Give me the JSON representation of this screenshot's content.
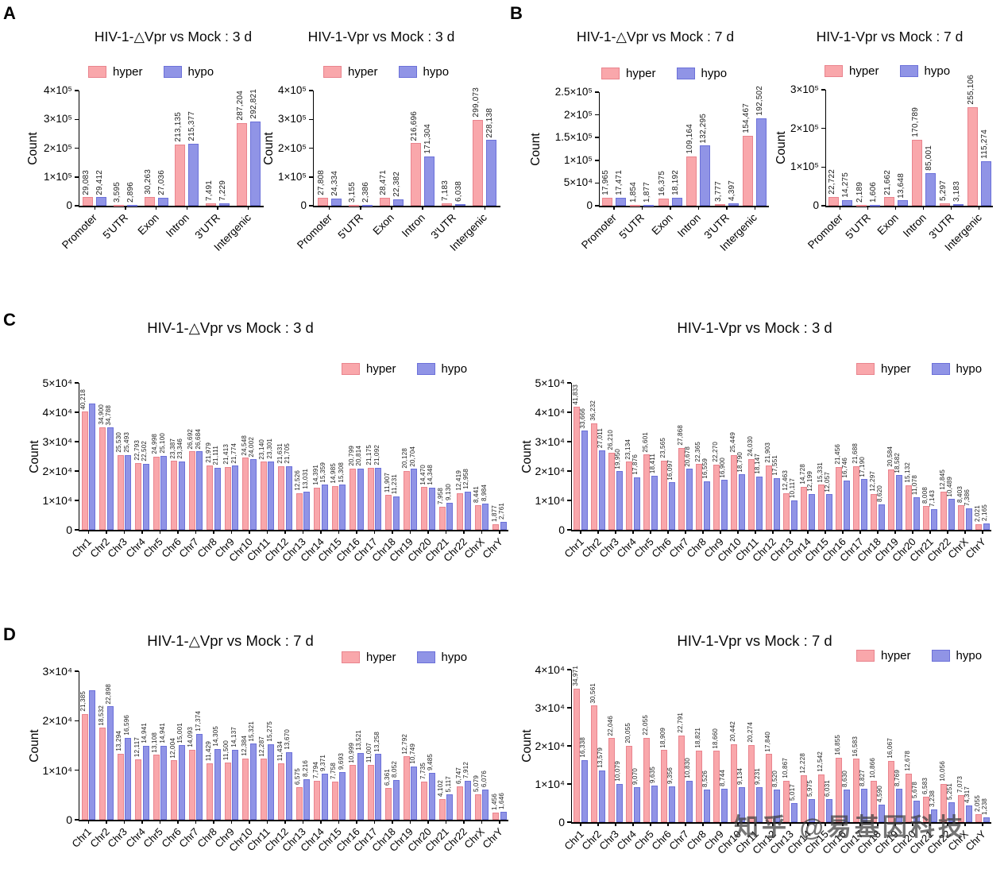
{
  "watermark": "知乎 @易基因科技",
  "legend": {
    "hyper": "hyper",
    "hypo": "hypo"
  },
  "colors": {
    "hyper": "#F9A7AB",
    "hyper_border": "#E9848E",
    "hypo": "#9094E6",
    "hypo_border": "#6C71D9"
  },
  "panels": [
    {
      "letter": "A"
    },
    {
      "letter": "B"
    },
    {
      "letter": "C"
    },
    {
      "letter": "D"
    }
  ],
  "chart_data": [
    {
      "type": "bar",
      "title": "HIV-1-△Vpr vs Mock : 3 d",
      "ylabel": "Count",
      "ymax": 400000,
      "yticks": [
        {
          "v": 0,
          "label": "0"
        },
        {
          "v": 100000,
          "label": "1×10⁵"
        },
        {
          "v": 200000,
          "label": "2×10⁵"
        },
        {
          "v": 300000,
          "label": "3×10⁵"
        },
        {
          "v": 400000,
          "label": "4×10⁵"
        }
      ],
      "categories": [
        "Promoter",
        "5'UTR",
        "Exon",
        "Intron",
        "3'UTR",
        "Intergenic"
      ],
      "series": [
        {
          "name": "hyper",
          "labels": [
            "29,083",
            "3,595",
            "30,263",
            "213,135",
            "7,491",
            "287,204"
          ]
        },
        {
          "name": "hypo",
          "labels": [
            "29,412",
            "2,896",
            "27,036",
            "215,377",
            "7,229",
            "292,821"
          ]
        }
      ]
    },
    {
      "type": "bar",
      "title": "HIV-1-Vpr vs Mock : 3 d",
      "ylabel": "Count",
      "ymax": 400000,
      "yticks": [
        {
          "v": 0,
          "label": "0"
        },
        {
          "v": 100000,
          "label": "1×10⁵"
        },
        {
          "v": 200000,
          "label": "2×10⁵"
        },
        {
          "v": 300000,
          "label": "3×10⁵"
        },
        {
          "v": 400000,
          "label": "4×10⁵"
        }
      ],
      "categories": [
        "Promoter",
        "5'UTR",
        "Exon",
        "Intron",
        "3'UTR",
        "Intergenic"
      ],
      "series": [
        {
          "name": "hyper",
          "labels": [
            "27,808",
            "3,155",
            "28,471",
            "216,696",
            "7,183",
            "299,073"
          ]
        },
        {
          "name": "hypo",
          "labels": [
            "24,334",
            "2,386",
            "22,382",
            "171,304",
            "6,038",
            "228,138"
          ]
        }
      ]
    },
    {
      "type": "bar",
      "title": "HIV-1-△Vpr vs Mock : 7 d",
      "ylabel": "Count",
      "ymax": 250000,
      "yticks": [
        {
          "v": 0,
          "label": "0"
        },
        {
          "v": 50000,
          "label": "5×10⁴"
        },
        {
          "v": 100000,
          "label": "1×10⁵"
        },
        {
          "v": 150000,
          "label": "1.5×10⁵"
        },
        {
          "v": 200000,
          "label": "2×10⁵"
        },
        {
          "v": 250000,
          "label": "2.5×10⁵"
        }
      ],
      "categories": [
        "Promoter",
        "5'UTR",
        "Exon",
        "Intron",
        "3'UTR",
        "Intergenic"
      ],
      "series": [
        {
          "name": "hyper",
          "labels": [
            "17,965",
            "1,854",
            "16,375",
            "109,164",
            "3,777",
            "154,467"
          ]
        },
        {
          "name": "hypo",
          "labels": [
            "17,471",
            "1,877",
            "18,192",
            "132,295",
            "4,397",
            "192,502"
          ]
        }
      ]
    },
    {
      "type": "bar",
      "title": "HIV-1-Vpr vs Mock : 7 d",
      "ylabel": "Count",
      "ymax": 300000,
      "yticks": [
        {
          "v": 0,
          "label": "0"
        },
        {
          "v": 100000,
          "label": "1×10⁵"
        },
        {
          "v": 200000,
          "label": "2×10⁵"
        },
        {
          "v": 300000,
          "label": "3×10⁵"
        }
      ],
      "categories": [
        "Promoter",
        "5'UTR",
        "Exon",
        "Intron",
        "3'UTR",
        "Intergenic"
      ],
      "series": [
        {
          "name": "hyper",
          "labels": [
            "22,722",
            "2,189",
            "21,662",
            "170,789",
            "5,297",
            "255,106"
          ]
        },
        {
          "name": "hypo",
          "labels": [
            "14,275",
            "1,606",
            "13,648",
            "85,001",
            "3,183",
            "115,274"
          ]
        }
      ]
    },
    {
      "type": "bar",
      "title": "HIV-1-△Vpr vs Mock : 3 d",
      "ylabel": "Count",
      "ymax": 50000,
      "yticks": [
        {
          "v": 0,
          "label": "0"
        },
        {
          "v": 10000,
          "label": "1×10⁴"
        },
        {
          "v": 20000,
          "label": "2×10⁴"
        },
        {
          "v": 30000,
          "label": "3×10⁴"
        },
        {
          "v": 40000,
          "label": "4×10⁴"
        },
        {
          "v": 50000,
          "label": "5×10⁴"
        }
      ],
      "categories": [
        "Chr1",
        "Chr2",
        "Chr3",
        "Chr4",
        "Chr5",
        "Chr6",
        "Chr7",
        "Chr8",
        "Chr9",
        "Chr10",
        "Chr11",
        "Chr12",
        "Chr13",
        "Chr14",
        "Chr15",
        "Chr16",
        "Chr17",
        "Chr18",
        "Chr19",
        "Chr20",
        "Chr21",
        "Chr22",
        "ChrX",
        "ChrY"
      ],
      "series": [
        {
          "name": "hyper",
          "labels": [
            "40,218",
            "34,900",
            "25,530",
            "22,793",
            "24,998",
            "23,387",
            "26,692",
            "21,979",
            "21,413",
            "24,548",
            "23,140",
            "21,631",
            "12,526",
            "14,391",
            "14,985",
            "20,799",
            "21,175",
            "11,907",
            "20,128",
            "14,470",
            "7,958",
            "12,419",
            "8,441",
            "1,877"
          ]
        },
        {
          "name": "hypo",
          "est": {
            "0": 43000
          },
          "labels": [
            "",
            "34,788",
            "25,493",
            "22,502",
            "25,100",
            "23,346",
            "26,684",
            "21,111",
            "21,774",
            "24,002",
            "23,301",
            "21,705",
            "13,031",
            "15,359",
            "15,308",
            "20,814",
            "21,092",
            "11,231",
            "20,704",
            "14,348",
            "9,130",
            "12,958",
            "8,984",
            "2,761"
          ]
        }
      ]
    },
    {
      "type": "bar",
      "title": "HIV-1-Vpr vs Mock : 3 d",
      "ylabel": "Count",
      "ymax": 50000,
      "yticks": [
        {
          "v": 0,
          "label": "0"
        },
        {
          "v": 10000,
          "label": "1×10⁴"
        },
        {
          "v": 20000,
          "label": "2×10⁴"
        },
        {
          "v": 30000,
          "label": "3×10⁴"
        },
        {
          "v": 40000,
          "label": "4×10⁴"
        },
        {
          "v": 50000,
          "label": "5×10⁴"
        }
      ],
      "categories": [
        "Chr1",
        "Chr2",
        "Chr3",
        "Chr4",
        "Chr5",
        "Chr6",
        "Chr7",
        "Chr8",
        "Chr9",
        "Chr10",
        "Chr11",
        "Chr12",
        "Chr13",
        "Chr14",
        "Chr15",
        "Chr16",
        "Chr17",
        "Chr18",
        "Chr19",
        "Chr20",
        "Chr21",
        "Chr22",
        "ChrX",
        "ChrY"
      ],
      "series": [
        {
          "name": "hyper",
          "labels": [
            "41,833",
            "36,232",
            "26,210",
            "23,134",
            "25,601",
            "23,565",
            "27,868",
            "22,365",
            "22,270",
            "25,449",
            "24,030",
            "21,903",
            "12,463",
            "14,728",
            "15,331",
            "21,456",
            "21,688",
            "12,297",
            "20,584",
            "15,132",
            "8,008",
            "12,845",
            "8,403",
            "2,021"
          ]
        },
        {
          "name": "hypo",
          "labels": [
            "33,666",
            "27,011",
            "19,950",
            "17,876",
            "18,411",
            "16,097",
            "20,678",
            "16,559",
            "16,900",
            "18,790",
            "18,147",
            "17,551",
            "10,117",
            "12,199",
            "12,057",
            "16,746",
            "17,190",
            "8,620",
            "18,582",
            "11,078",
            "7,143",
            "10,489",
            "7,386",
            "2,165"
          ]
        }
      ]
    },
    {
      "type": "bar",
      "title": "HIV-1-△Vpr vs Mock : 7 d",
      "ylabel": "Count",
      "ymax": 30000,
      "yticks": [
        {
          "v": 0,
          "label": "0"
        },
        {
          "v": 10000,
          "label": "1×10⁴"
        },
        {
          "v": 20000,
          "label": "2×10⁴"
        },
        {
          "v": 30000,
          "label": "3×10⁴"
        }
      ],
      "categories": [
        "Chr1",
        "Chr2",
        "Chr3",
        "Chr4",
        "Chr5",
        "Chr6",
        "Chr7",
        "Chr8",
        "Chr9",
        "Chr10",
        "Chr11",
        "Chr12",
        "Chr13",
        "Chr14",
        "Chr15",
        "Chr16",
        "Chr17",
        "Chr18",
        "Chr19",
        "Chr20",
        "Chr21",
        "Chr22",
        "ChrX",
        "ChrY"
      ],
      "series": [
        {
          "name": "hyper",
          "labels": [
            "21,385",
            "18,532",
            "13,294",
            "12,117",
            "13,108",
            "12,004",
            "14,093",
            "11,429",
            "11,500",
            "12,384",
            "12,287",
            "11,434",
            "6,575",
            "7,794",
            "7,758",
            "10,999",
            "11,007",
            "6,361",
            "12,792",
            "7,735",
            "4,102",
            "6,747",
            "5,079",
            "1,456"
          ]
        },
        {
          "name": "hypo",
          "est": {
            "0": 26100
          },
          "labels": [
            "",
            "22,898",
            "16,596",
            "14,941",
            "14,941",
            "15,001",
            "17,374",
            "14,305",
            "14,137",
            "15,321",
            "15,275",
            "13,670",
            "8,216",
            "9,371",
            "9,693",
            "13,521",
            "13,258",
            "8,052",
            "10,749",
            "9,485",
            "5,117",
            "7,912",
            "6,076",
            "1,646"
          ]
        }
      ]
    },
    {
      "type": "bar",
      "title": "HIV-1-Vpr vs Mock : 7 d",
      "ylabel": "Count",
      "ymax": 40000,
      "yticks": [
        {
          "v": 0,
          "label": "0"
        },
        {
          "v": 10000,
          "label": "1×10⁴"
        },
        {
          "v": 20000,
          "label": "2×10⁴"
        },
        {
          "v": 30000,
          "label": "3×10⁴"
        },
        {
          "v": 40000,
          "label": "4×10⁴"
        }
      ],
      "categories": [
        "Chr1",
        "Chr2",
        "Chr3",
        "Chr4",
        "Chr5",
        "Chr6",
        "Chr7",
        "Chr8",
        "Chr9",
        "Chr10",
        "Chr11",
        "Chr12",
        "Chr13",
        "Chr14",
        "Chr15",
        "Chr16",
        "Chr17",
        "Chr18",
        "Chr19",
        "Chr20",
        "Chr21",
        "Chr22",
        "ChrX",
        "ChrY"
      ],
      "series": [
        {
          "name": "hyper",
          "labels": [
            "34,971",
            "30,561",
            "22,046",
            "20,055",
            "22,055",
            "18,909",
            "22,791",
            "18,821",
            "18,660",
            "20,442",
            "20,274",
            "17,840",
            "10,867",
            "12,228",
            "12,542",
            "16,855",
            "16,583",
            "10,866",
            "16,067",
            "12,678",
            "6,583",
            "10,056",
            "7,073",
            "2,055"
          ]
        },
        {
          "name": "hypo",
          "labels": [
            "16,338",
            "13,579",
            "10,079",
            "9,070",
            "9,635",
            "9,356",
            "10,830",
            "8,526",
            "8,744",
            "9,134",
            "9,231",
            "8,520",
            "5,017",
            "5,975",
            "6,031",
            "8,630",
            "8,827",
            "4,590",
            "8,769",
            "5,678",
            "3,238",
            "5,251",
            "4,317",
            "1,238"
          ]
        }
      ]
    }
  ]
}
